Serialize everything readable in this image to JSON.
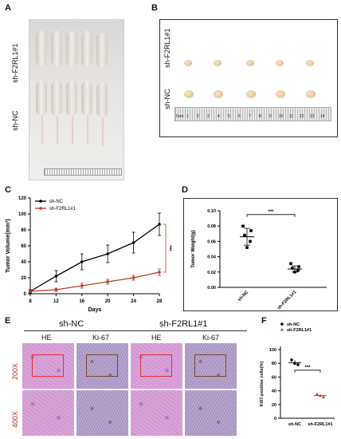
{
  "panels": {
    "A": {
      "label": "A",
      "group_top": "sh-F2RL1#1",
      "group_bottom": "sh-NC"
    },
    "B": {
      "label": "B",
      "group_top": "sh-F2RL1#1",
      "group_bottom": "sh-NC",
      "ruler_unit": "0cm",
      "ruler_ticks": [
        "1",
        "2",
        "3",
        "4",
        "5",
        "6",
        "7",
        "8",
        "9",
        "10",
        "11",
        "12",
        "13",
        "14"
      ]
    },
    "C": {
      "label": "C"
    },
    "D": {
      "label": "D"
    },
    "E": {
      "label": "E",
      "group_left": "sh-NC",
      "group_right": "sh-F2RL1#1",
      "stain1": "HE",
      "stain2": "Ki-67",
      "mag1": "200X",
      "mag2": "400X"
    },
    "F": {
      "label": "F"
    }
  },
  "chart_data": [
    {
      "id": "C",
      "type": "line",
      "xlabel": "Days",
      "ylabel": "Tumor Volume(mm³)",
      "x": [
        8,
        12,
        16,
        20,
        24,
        28
      ],
      "xlim": [
        8,
        28
      ],
      "ylim": [
        0,
        120
      ],
      "xticks": [
        "8",
        "12",
        "16",
        "20",
        "24",
        "28"
      ],
      "yticks": [
        "0",
        "20",
        "40",
        "60",
        "80",
        "100",
        "120"
      ],
      "legend_position": "top-left",
      "significance": "***",
      "series": [
        {
          "name": "sh-NC",
          "color": "#000000",
          "values": [
            3,
            22,
            40,
            50,
            64,
            87
          ],
          "errors": [
            2,
            7,
            10,
            11,
            13,
            14
          ]
        },
        {
          "name": "sh-F2RL1#1",
          "color": "#c0392b",
          "values": [
            3,
            5,
            10,
            15,
            20,
            27
          ],
          "errors": [
            1,
            2,
            3,
            3,
            3,
            4
          ]
        }
      ]
    },
    {
      "id": "D",
      "type": "scatter",
      "ylabel": "Tumor Weight(g)",
      "categories": [
        "sh-NC",
        "sh-F2RL1#1"
      ],
      "ylim": [
        0,
        0.1
      ],
      "yticks": [
        "0.00",
        "0.02",
        "0.04",
        "0.06",
        "0.08",
        "0.10"
      ],
      "significance": "***",
      "series": [
        {
          "name": "sh-NC",
          "points": [
            0.08,
            0.074,
            0.068,
            0.06,
            0.052
          ],
          "mean": 0.066,
          "sd": 0.011
        },
        {
          "name": "sh-F2RL1#1",
          "points": [
            0.031,
            0.027,
            0.025,
            0.022,
            0.02
          ],
          "mean": 0.024,
          "sd": 0.004
        }
      ]
    },
    {
      "id": "F",
      "type": "scatter",
      "ylabel": "Ki67-positive cells(%)",
      "categories": [
        "sh-NC",
        "sh-F2RL1#1"
      ],
      "ylim": [
        0,
        100
      ],
      "yticks": [
        "0",
        "20",
        "40",
        "60",
        "80",
        "100"
      ],
      "legend_position": "top-left",
      "significance": "***",
      "series": [
        {
          "name": "sh-NC",
          "color": "#000000",
          "points": [
            85,
            80,
            78
          ],
          "mean": 81,
          "sd": 3.5
        },
        {
          "name": "sh-F2RL1#1",
          "color": "#c0392b",
          "points": [
            35,
            33,
            31
          ],
          "mean": 33,
          "sd": 2
        }
      ]
    }
  ]
}
